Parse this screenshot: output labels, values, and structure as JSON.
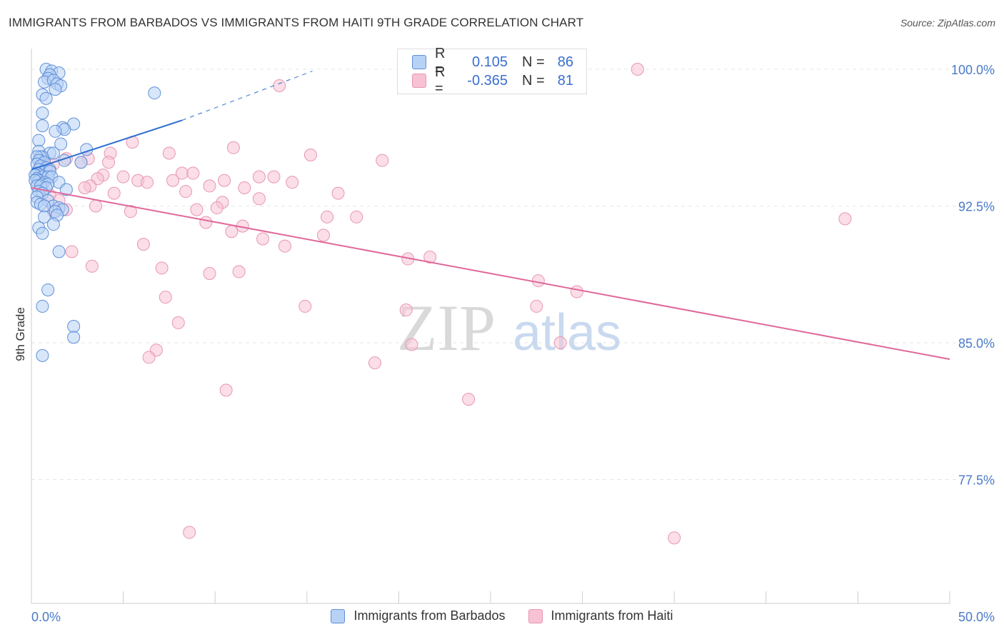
{
  "header": {
    "title": "IMMIGRANTS FROM BARBADOS VS IMMIGRANTS FROM HAITI 9TH GRADE CORRELATION CHART",
    "source": "Source: ZipAtlas.com"
  },
  "watermark": {
    "zip": "ZIP",
    "atlas": "atlas"
  },
  "legend": {
    "r_label": "R =",
    "n_label": "N =",
    "barbados": {
      "r": "0.105",
      "n": "86"
    },
    "haiti": {
      "r": "-0.365",
      "n": "81"
    }
  },
  "colors": {
    "barbados_fill": "#b8d2f5",
    "barbados_stroke": "#5f8fd8",
    "barbados_line": "#2e6fd0",
    "haiti_fill": "#f7c2d3",
    "haiti_stroke": "#e896b2",
    "haiti_line": "#e0679a"
  },
  "chart_data": {
    "type": "scatter",
    "title": "IMMIGRANTS FROM BARBADOS VS IMMIGRANTS FROM HAITI 9TH GRADE CORRELATION CHART",
    "xlabel": "",
    "ylabel": "9th Grade",
    "xlim": [
      0,
      50
    ],
    "ylim": [
      70,
      101
    ],
    "x_tick_labels": {
      "min": "0.0%",
      "max": "50.0%"
    },
    "y_ticks": [
      {
        "value": 100,
        "label": "100.0%"
      },
      {
        "value": 92.5,
        "label": "92.5%"
      },
      {
        "value": 85,
        "label": "85.0%"
      },
      {
        "value": 77.5,
        "label": "77.5%"
      }
    ],
    "series": [
      {
        "name": "Immigrants from Barbados",
        "r": 0.105,
        "n": 86,
        "trend": {
          "x": [
            0,
            8.2
          ],
          "y": [
            94.5,
            97.2
          ],
          "dashed_to": {
            "x": 15.3,
            "y": 99.9
          }
        },
        "points": [
          [
            0.8,
            100.0
          ],
          [
            1.1,
            99.9
          ],
          [
            1.5,
            99.8
          ],
          [
            1.0,
            99.7
          ],
          [
            0.9,
            99.5
          ],
          [
            0.7,
            99.3
          ],
          [
            1.2,
            99.4
          ],
          [
            1.4,
            99.2
          ],
          [
            1.6,
            99.1
          ],
          [
            1.3,
            98.9
          ],
          [
            0.6,
            98.6
          ],
          [
            0.8,
            98.4
          ],
          [
            6.7,
            98.7
          ],
          [
            0.6,
            97.6
          ],
          [
            2.3,
            97.0
          ],
          [
            0.6,
            96.9
          ],
          [
            1.7,
            96.8
          ],
          [
            1.8,
            96.7
          ],
          [
            1.3,
            96.6
          ],
          [
            0.4,
            96.1
          ],
          [
            1.6,
            95.9
          ],
          [
            3.0,
            95.6
          ],
          [
            0.4,
            95.5
          ],
          [
            1.0,
            95.4
          ],
          [
            1.2,
            95.4
          ],
          [
            0.6,
            95.2
          ],
          [
            0.5,
            95.2
          ],
          [
            0.3,
            95.2
          ],
          [
            0.4,
            95.0
          ],
          [
            0.7,
            94.9
          ],
          [
            1.8,
            95.0
          ],
          [
            2.7,
            94.9
          ],
          [
            0.3,
            94.8
          ],
          [
            0.5,
            94.7
          ],
          [
            0.8,
            94.6
          ],
          [
            0.4,
            94.5
          ],
          [
            1.0,
            94.5
          ],
          [
            1.0,
            94.4
          ],
          [
            0.3,
            94.3
          ],
          [
            0.5,
            94.2
          ],
          [
            0.2,
            94.2
          ],
          [
            0.6,
            94.1
          ],
          [
            0.9,
            94.1
          ],
          [
            1.1,
            94.1
          ],
          [
            0.3,
            94.0
          ],
          [
            0.4,
            93.9
          ],
          [
            0.2,
            93.9
          ],
          [
            0.7,
            93.8
          ],
          [
            1.5,
            93.8
          ],
          [
            0.6,
            93.7
          ],
          [
            0.9,
            93.7
          ],
          [
            0.3,
            93.6
          ],
          [
            0.5,
            93.6
          ],
          [
            0.8,
            93.5
          ],
          [
            1.9,
            93.4
          ],
          [
            0.4,
            93.3
          ],
          [
            0.6,
            93.2
          ],
          [
            0.3,
            93.0
          ],
          [
            0.9,
            92.8
          ],
          [
            0.3,
            92.7
          ],
          [
            0.5,
            92.6
          ],
          [
            1.2,
            92.5
          ],
          [
            0.7,
            92.5
          ],
          [
            1.5,
            92.4
          ],
          [
            1.7,
            92.3
          ],
          [
            1.3,
            92.2
          ],
          [
            1.4,
            92.0
          ],
          [
            0.7,
            91.9
          ],
          [
            1.2,
            91.5
          ],
          [
            0.4,
            91.3
          ],
          [
            0.6,
            91.0
          ],
          [
            1.5,
            90.0
          ],
          [
            0.9,
            87.9
          ],
          [
            0.6,
            87.0
          ],
          [
            2.3,
            85.9
          ],
          [
            2.3,
            85.3
          ],
          [
            0.6,
            84.3
          ]
        ]
      },
      {
        "name": "Immigrants from Haiti",
        "r": -0.365,
        "n": 81,
        "trend": {
          "x": [
            0,
            50
          ],
          "y": [
            93.5,
            84.1
          ]
        },
        "points": [
          [
            33.0,
            100.0
          ],
          [
            13.5,
            99.1
          ],
          [
            5.5,
            96.0
          ],
          [
            11.0,
            95.7
          ],
          [
            7.5,
            95.4
          ],
          [
            15.2,
            95.3
          ],
          [
            4.3,
            95.4
          ],
          [
            1.9,
            95.1
          ],
          [
            3.1,
            95.1
          ],
          [
            19.1,
            95.0
          ],
          [
            2.7,
            94.9
          ],
          [
            4.2,
            94.9
          ],
          [
            0.7,
            95.0
          ],
          [
            1.2,
            94.8
          ],
          [
            3.9,
            94.2
          ],
          [
            8.2,
            94.3
          ],
          [
            8.8,
            94.3
          ],
          [
            12.4,
            94.1
          ],
          [
            13.2,
            94.1
          ],
          [
            5.0,
            94.1
          ],
          [
            3.6,
            94.0
          ],
          [
            7.7,
            93.9
          ],
          [
            10.5,
            93.9
          ],
          [
            14.2,
            93.8
          ],
          [
            5.8,
            93.9
          ],
          [
            6.3,
            93.8
          ],
          [
            3.2,
            93.6
          ],
          [
            2.9,
            93.5
          ],
          [
            9.7,
            93.6
          ],
          [
            11.6,
            93.5
          ],
          [
            8.4,
            93.3
          ],
          [
            4.5,
            93.2
          ],
          [
            16.7,
            93.2
          ],
          [
            1.0,
            93.1
          ],
          [
            12.4,
            92.9
          ],
          [
            10.4,
            92.7
          ],
          [
            1.5,
            92.8
          ],
          [
            3.5,
            92.5
          ],
          [
            9.0,
            92.3
          ],
          [
            10.1,
            92.4
          ],
          [
            1.2,
            92.2
          ],
          [
            1.9,
            92.3
          ],
          [
            5.4,
            92.2
          ],
          [
            16.1,
            91.9
          ],
          [
            17.7,
            91.9
          ],
          [
            44.3,
            91.8
          ],
          [
            9.5,
            91.6
          ],
          [
            11.5,
            91.4
          ],
          [
            10.9,
            91.1
          ],
          [
            15.9,
            90.9
          ],
          [
            12.6,
            90.7
          ],
          [
            6.1,
            90.4
          ],
          [
            13.8,
            90.3
          ],
          [
            2.2,
            90.0
          ],
          [
            20.5,
            89.6
          ],
          [
            21.7,
            89.7
          ],
          [
            3.3,
            89.2
          ],
          [
            7.1,
            89.1
          ],
          [
            9.7,
            88.8
          ],
          [
            11.3,
            88.9
          ],
          [
            27.6,
            88.4
          ],
          [
            29.7,
            87.8
          ],
          [
            7.3,
            87.5
          ],
          [
            14.9,
            87.0
          ],
          [
            27.5,
            87.0
          ],
          [
            20.4,
            86.8
          ],
          [
            8.0,
            86.1
          ],
          [
            20.7,
            84.9
          ],
          [
            28.8,
            85.0
          ],
          [
            6.8,
            84.6
          ],
          [
            6.4,
            84.2
          ],
          [
            18.7,
            83.9
          ],
          [
            10.6,
            82.4
          ],
          [
            23.8,
            81.9
          ],
          [
            8.6,
            74.6
          ],
          [
            35.0,
            74.3
          ]
        ]
      }
    ]
  },
  "bottom_legend": {
    "barbados": "Immigrants from Barbados",
    "haiti": "Immigrants from Haiti"
  }
}
